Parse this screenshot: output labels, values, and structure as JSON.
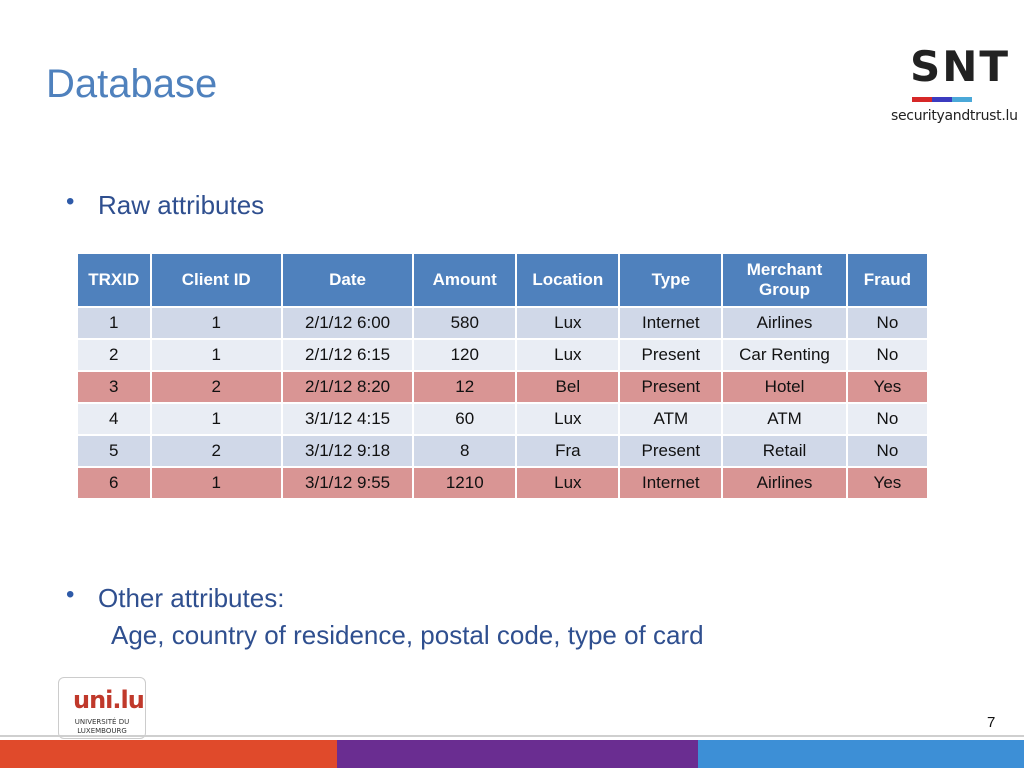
{
  "slide": {
    "title": "Database",
    "page_number": "7"
  },
  "logos": {
    "snt": {
      "letters": "SNT",
      "domain": "securityandtrust.lu",
      "bar_colors": [
        "#d62728",
        "#3b3bbf",
        "#4aa8d8"
      ]
    },
    "university": {
      "mark": "uni.lu",
      "name_line1": "UNIVERSITÉ DU",
      "name_line2": "LUXEMBOURG"
    }
  },
  "bullets": {
    "first": "Raw attributes",
    "second": "Other attributes:",
    "second_detail": "Age, country of residence, postal code, type of card"
  },
  "table": {
    "headers": [
      "TRXID",
      "Client ID",
      "Date",
      "Amount",
      "Location",
      "Type",
      "Merchant Group",
      "Fraud"
    ],
    "rows": [
      [
        "1",
        "1",
        "2/1/12 6:00",
        "580",
        "Lux",
        "Internet",
        "Airlines",
        "No"
      ],
      [
        "2",
        "1",
        "2/1/12 6:15",
        "120",
        "Lux",
        "Present",
        "Car Renting",
        "No"
      ],
      [
        "3",
        "2",
        "2/1/12 8:20",
        "12",
        "Bel",
        "Present",
        "Hotel",
        "Yes"
      ],
      [
        "4",
        "1",
        "3/1/12 4:15",
        "60",
        "Lux",
        "ATM",
        "ATM",
        "No"
      ],
      [
        "5",
        "2",
        "3/1/12 9:18",
        "8",
        "Fra",
        "Present",
        "Retail",
        "No"
      ],
      [
        "6",
        "1",
        "3/1/12 9:55",
        "1210",
        "Lux",
        "Internet",
        "Airlines",
        "Yes"
      ]
    ]
  },
  "colors": {
    "title": "#4f81bd",
    "header_bg": "#4f81bd",
    "row_odd": "#d0d8e8",
    "row_even": "#e9edf4",
    "fraud_row": "#d99594",
    "footer": [
      "#e04a2b",
      "#6a2d91",
      "#3d8fd6"
    ]
  }
}
